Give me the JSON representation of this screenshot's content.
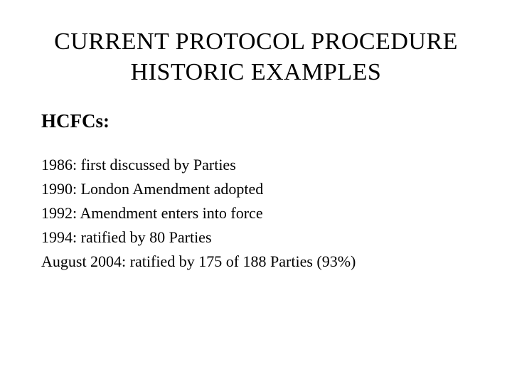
{
  "title": {
    "line1": "CURRENT PROTOCOL PROCEDURE",
    "line2": "HISTORIC EXAMPLES",
    "fontsize": 34,
    "color": "#000000"
  },
  "subtitle": {
    "text": "HCFCs:",
    "fontsize": 27,
    "fontweight": "bold",
    "color": "#000000"
  },
  "timeline": {
    "fontsize": 22,
    "color": "#000000",
    "items": [
      "1986: first discussed by Parties",
      "1990: London Amendment adopted",
      "1992: Amendment enters into force",
      "1994: ratified by 80 Parties",
      "August 2004: ratified by 175 of 188 Parties (93%)"
    ]
  },
  "background_color": "#ffffff"
}
